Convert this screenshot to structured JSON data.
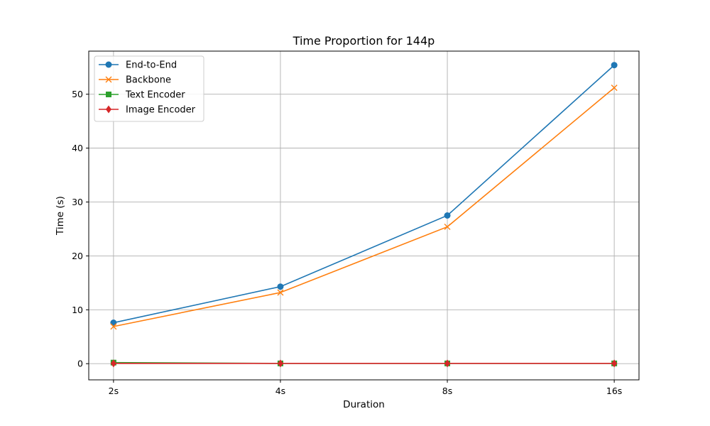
{
  "chart_data": {
    "type": "line",
    "title": "Time Proportion for 144p",
    "xlabel": "Duration",
    "ylabel": "Time (s)",
    "categories": [
      "2s",
      "4s",
      "8s",
      "16s"
    ],
    "ylim": [
      -3,
      58
    ],
    "yticks": [
      0,
      10,
      20,
      30,
      40,
      50
    ],
    "grid": true,
    "legend_position": "top-left",
    "series": [
      {
        "name": "End-to-End",
        "color": "#1f77b4",
        "marker": "circle",
        "values": [
          7.6,
          14.3,
          27.5,
          55.4
        ]
      },
      {
        "name": "Backbone",
        "color": "#ff7f0e",
        "marker": "x",
        "values": [
          6.9,
          13.2,
          25.4,
          51.2
        ]
      },
      {
        "name": "Text Encoder",
        "color": "#2ca02c",
        "marker": "square",
        "values": [
          0.2,
          0.05,
          0.05,
          0.05
        ]
      },
      {
        "name": "Image Encoder",
        "color": "#d62728",
        "marker": "diamond",
        "values": [
          0.05,
          0.05,
          0.05,
          0.05
        ]
      }
    ]
  }
}
